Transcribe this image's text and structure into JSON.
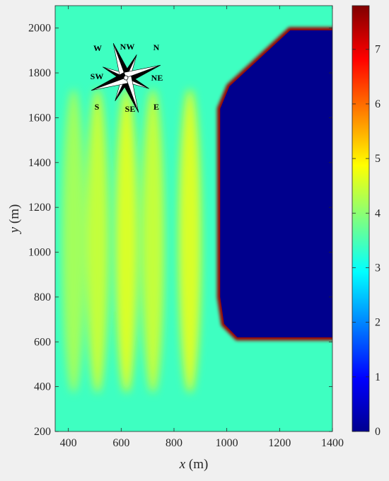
{
  "chart_data": {
    "type": "heatmap",
    "title": "",
    "xlabel": {
      "var": "x",
      "unit": " (m)"
    },
    "ylabel": {
      "var": "y",
      "unit": " (m)"
    },
    "xlim": [
      350,
      1400
    ],
    "ylim": [
      200,
      2100
    ],
    "xticks": [
      400,
      600,
      800,
      1000,
      1200,
      1400
    ],
    "yticks": [
      200,
      400,
      600,
      800,
      1000,
      1200,
      1400,
      1600,
      1800,
      2000
    ],
    "colorbar": {
      "min": 0,
      "max": 7.8,
      "ticks": [
        0,
        1,
        2,
        3,
        4,
        5,
        6,
        7
      ],
      "colormap": "jet"
    },
    "land": {
      "outline": [
        [
          1240,
          1990
        ],
        [
          1400,
          1990
        ],
        [
          1400,
          620
        ],
        [
          1040,
          620
        ],
        [
          990,
          680
        ],
        [
          975,
          800
        ],
        [
          975,
          1640
        ],
        [
          1010,
          1740
        ],
        [
          1240,
          1990
        ]
      ],
      "value": 0.1
    },
    "field_notes": {
      "background_value": 3.4,
      "band_values": [
        4.3,
        4.6,
        4.8,
        4.6,
        4.8
      ],
      "breakwater_edge_value": 7.6,
      "band_centers_x": [
        420,
        510,
        620,
        720,
        860
      ]
    },
    "compass_labels": [
      "N",
      "NW",
      "W",
      "SW",
      "S",
      "SE",
      "E",
      "NE"
    ]
  }
}
